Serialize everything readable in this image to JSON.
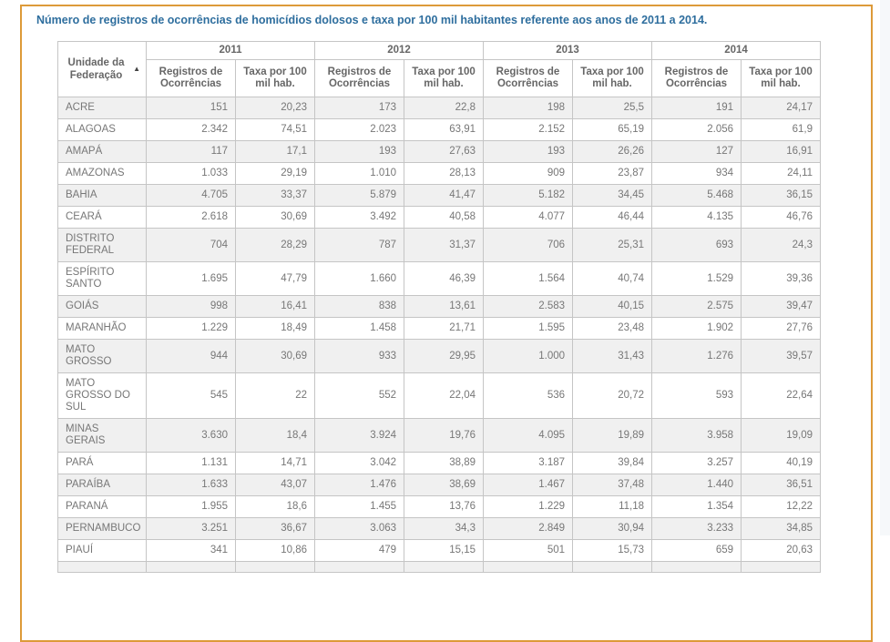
{
  "page": {
    "title": "Número de registros de ocorrências de homicídios dolosos e taxa por 100 mil habitantes referente aos anos de 2011 a 2014.",
    "title_color": "#2e6e9e",
    "accent_border_color": "#dd9a39",
    "row_stripe_color": "#f0f0f0"
  },
  "table": {
    "row_header": "Unidade da Federação",
    "sort_icon": "▲",
    "years": [
      "2011",
      "2012",
      "2013",
      "2014"
    ],
    "sub_headers": [
      "Registros de Ocorrências",
      "Taxa por 100 mil hab."
    ],
    "rows": [
      {
        "uf": "ACRE",
        "values": [
          "151",
          "20,23",
          "173",
          "22,8",
          "198",
          "25,5",
          "191",
          "24,17"
        ]
      },
      {
        "uf": "ALAGOAS",
        "values": [
          "2.342",
          "74,51",
          "2.023",
          "63,91",
          "2.152",
          "65,19",
          "2.056",
          "61,9"
        ]
      },
      {
        "uf": "AMAPÁ",
        "values": [
          "117",
          "17,1",
          "193",
          "27,63",
          "193",
          "26,26",
          "127",
          "16,91"
        ]
      },
      {
        "uf": "AMAZONAS",
        "values": [
          "1.033",
          "29,19",
          "1.010",
          "28,13",
          "909",
          "23,87",
          "934",
          "24,11"
        ]
      },
      {
        "uf": "BAHIA",
        "values": [
          "4.705",
          "33,37",
          "5.879",
          "41,47",
          "5.182",
          "34,45",
          "5.468",
          "36,15"
        ]
      },
      {
        "uf": "CEARÁ",
        "values": [
          "2.618",
          "30,69",
          "3.492",
          "40,58",
          "4.077",
          "46,44",
          "4.135",
          "46,76"
        ]
      },
      {
        "uf": "DISTRITO FEDERAL",
        "values": [
          "704",
          "28,29",
          "787",
          "31,37",
          "706",
          "25,31",
          "693",
          "24,3"
        ]
      },
      {
        "uf": "ESPÍRITO SANTO",
        "values": [
          "1.695",
          "47,79",
          "1.660",
          "46,39",
          "1.564",
          "40,74",
          "1.529",
          "39,36"
        ]
      },
      {
        "uf": "GOIÁS",
        "values": [
          "998",
          "16,41",
          "838",
          "13,61",
          "2.583",
          "40,15",
          "2.575",
          "39,47"
        ]
      },
      {
        "uf": "MARANHÃO",
        "values": [
          "1.229",
          "18,49",
          "1.458",
          "21,71",
          "1.595",
          "23,48",
          "1.902",
          "27,76"
        ]
      },
      {
        "uf": "MATO GROSSO",
        "values": [
          "944",
          "30,69",
          "933",
          "29,95",
          "1.000",
          "31,43",
          "1.276",
          "39,57"
        ]
      },
      {
        "uf": "MATO GROSSO DO SUL",
        "values": [
          "545",
          "22",
          "552",
          "22,04",
          "536",
          "20,72",
          "593",
          "22,64"
        ]
      },
      {
        "uf": "MINAS GERAIS",
        "values": [
          "3.630",
          "18,4",
          "3.924",
          "19,76",
          "4.095",
          "19,89",
          "3.958",
          "19,09"
        ]
      },
      {
        "uf": "PARÁ",
        "values": [
          "1.131",
          "14,71",
          "3.042",
          "38,89",
          "3.187",
          "39,84",
          "3.257",
          "40,19"
        ]
      },
      {
        "uf": "PARAÍBA",
        "values": [
          "1.633",
          "43,07",
          "1.476",
          "38,69",
          "1.467",
          "37,48",
          "1.440",
          "36,51"
        ]
      },
      {
        "uf": "PARANÁ",
        "values": [
          "1.955",
          "18,6",
          "1.455",
          "13,76",
          "1.229",
          "11,18",
          "1.354",
          "12,22"
        ]
      },
      {
        "uf": "PERNAMBUCO",
        "values": [
          "3.251",
          "36,67",
          "3.063",
          "34,3",
          "2.849",
          "30,94",
          "3.233",
          "34,85"
        ]
      },
      {
        "uf": "PIAUÍ",
        "values": [
          "341",
          "10,86",
          "479",
          "15,15",
          "501",
          "15,73",
          "659",
          "20,63"
        ]
      }
    ]
  }
}
